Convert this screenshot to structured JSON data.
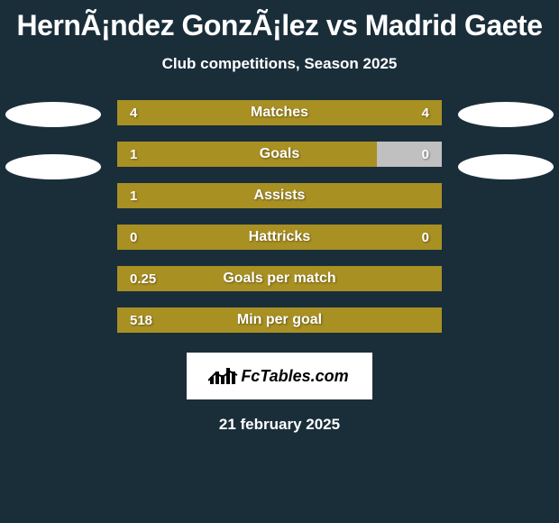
{
  "background_color": "#1a2e3a",
  "header": {
    "title": "HernÃ¡ndez GonzÃ¡lez vs Madrid Gaete",
    "subtitle": "Club competitions, Season 2025",
    "text_color": "#ffffff"
  },
  "bar_color_primary": "#a99023",
  "bar_color_secondary": "#c0c0c0",
  "value_text_color": "#ffffff",
  "label_text_color": "#ffffff",
  "ellipse_color": "#ffffff",
  "left_ellipses": 2,
  "right_ellipses": 2,
  "stats": [
    {
      "label": "Matches",
      "left_val": "4",
      "right_val": "4",
      "left_pct": 50,
      "right_pct": 50,
      "show_right": true
    },
    {
      "label": "Goals",
      "left_val": "1",
      "right_val": "0",
      "left_pct": 80,
      "right_pct": 20,
      "show_right": true,
      "right_is_secondary": true
    },
    {
      "label": "Assists",
      "left_val": "1",
      "right_val": "",
      "left_pct": 100,
      "right_pct": 0,
      "show_right": false
    },
    {
      "label": "Hattricks",
      "left_val": "0",
      "right_val": "0",
      "left_pct": 100,
      "right_pct": 0,
      "show_right": true
    },
    {
      "label": "Goals per match",
      "left_val": "0.25",
      "right_val": "",
      "left_pct": 100,
      "right_pct": 0,
      "show_right": false
    },
    {
      "label": "Min per goal",
      "left_val": "518",
      "right_val": "",
      "left_pct": 100,
      "right_pct": 0,
      "show_right": false
    }
  ],
  "logo": {
    "text": "FcTables.com",
    "bg_color": "#ffffff",
    "text_color": "#000000"
  },
  "date": {
    "text": "21 february 2025",
    "color": "#ffffff"
  }
}
